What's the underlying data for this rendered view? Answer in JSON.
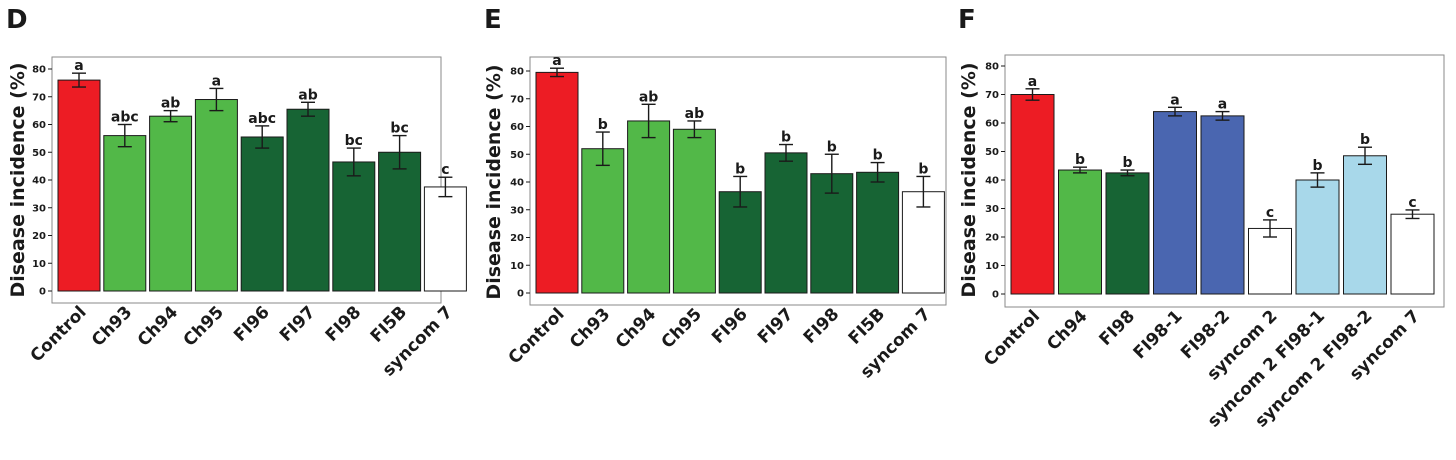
{
  "colors": {
    "red": "#ed1c24",
    "light_green": "#52b848",
    "dark_green": "#176434",
    "blue": "#4a66b0",
    "light_blue": "#a8d8ea",
    "white": "#ffffff"
  },
  "chart_data": [
    {
      "type": "bar",
      "panel": "D",
      "ylabel": "Disease incidence (%)",
      "ylim": [
        0,
        80
      ],
      "yticks": [
        0,
        10,
        20,
        30,
        40,
        50,
        60,
        70,
        80
      ],
      "categories": [
        "Control",
        "Ch93",
        "Ch94",
        "Ch95",
        "FI96",
        "FI97",
        "FI98",
        "FI5B",
        "syncom 7"
      ],
      "values": [
        76,
        56,
        63,
        69,
        55.5,
        65.5,
        46.5,
        50,
        37.5
      ],
      "errors": [
        2.5,
        4,
        2,
        4,
        4,
        2.5,
        5,
        6,
        3.5
      ],
      "letters": [
        "a",
        "abc",
        "ab",
        "a",
        "abc",
        "ab",
        "bc",
        "bc",
        "c"
      ],
      "bar_colors": [
        "red",
        "light_green",
        "light_green",
        "light_green",
        "dark_green",
        "dark_green",
        "dark_green",
        "dark_green",
        "white"
      ],
      "grid": false
    },
    {
      "type": "bar",
      "panel": "E",
      "ylabel": "Disease incidence (%)",
      "ylim": [
        0,
        80
      ],
      "yticks": [
        0,
        10,
        20,
        30,
        40,
        50,
        60,
        70,
        80
      ],
      "categories": [
        "Control",
        "Ch93",
        "Ch94",
        "Ch95",
        "FI96",
        "FI97",
        "FI98",
        "FI5B",
        "syncom 7"
      ],
      "values": [
        79.5,
        52,
        62,
        59,
        36.5,
        50.5,
        43,
        43.5,
        36.5
      ],
      "errors": [
        1.5,
        6,
        6,
        3,
        5.5,
        3,
        7,
        3.5,
        5.5
      ],
      "letters": [
        "a",
        "b",
        "ab",
        "ab",
        "b",
        "b",
        "b",
        "b",
        "b"
      ],
      "bar_colors": [
        "red",
        "light_green",
        "light_green",
        "light_green",
        "dark_green",
        "dark_green",
        "dark_green",
        "dark_green",
        "white"
      ],
      "grid": false
    },
    {
      "type": "bar",
      "panel": "F",
      "ylabel": "Disease incidence (%)",
      "ylim": [
        0,
        80
      ],
      "yticks": [
        0,
        10,
        20,
        30,
        40,
        50,
        60,
        70,
        80
      ],
      "categories": [
        "Control",
        "Ch94",
        "FI98",
        "FI98-1",
        "FI98-2",
        "syncom 2",
        "syncom 2 FI98-1",
        "syncom 2 FI98-2",
        "syncom 7"
      ],
      "values": [
        70,
        43.5,
        42.5,
        64,
        62.5,
        23,
        40,
        48.5,
        28
      ],
      "errors": [
        2,
        1,
        1,
        1.5,
        1.5,
        3,
        2.5,
        3,
        1.5
      ],
      "letters": [
        "a",
        "b",
        "b",
        "a",
        "a",
        "c",
        "b",
        "b",
        "c"
      ],
      "bar_colors": [
        "red",
        "light_green",
        "dark_green",
        "blue",
        "blue",
        "white",
        "light_blue",
        "light_blue",
        "white"
      ],
      "grid": false
    }
  ]
}
